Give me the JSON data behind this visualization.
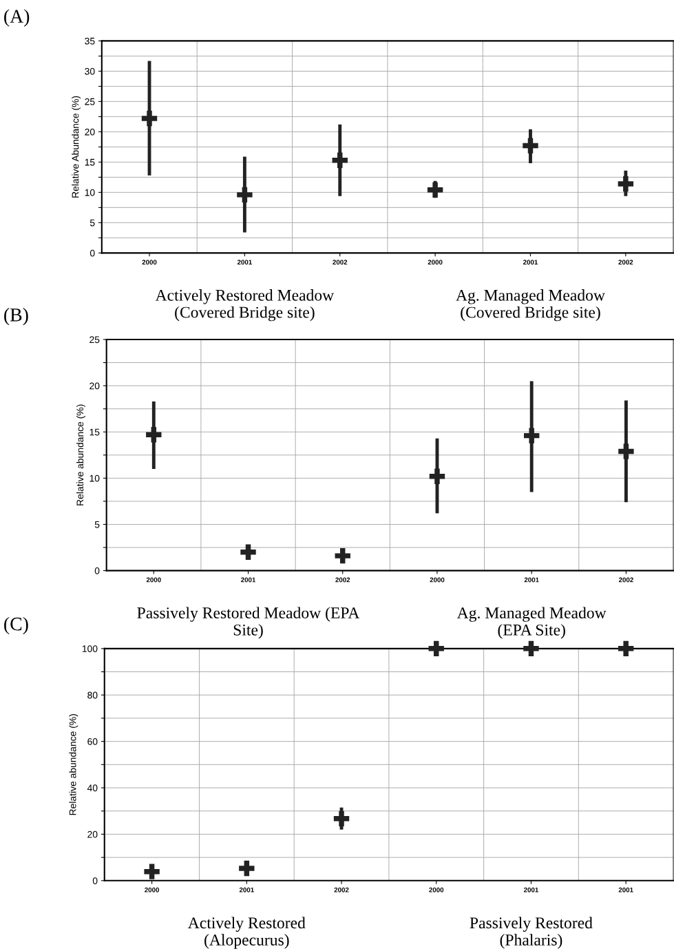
{
  "chart_data": [
    {
      "type": "scatter",
      "ylabel": "Relative Abundance (%)",
      "categories": [
        "2000",
        "2001",
        "2002",
        "2000",
        "2001",
        "2002"
      ],
      "values": [
        22.2,
        9.6,
        15.3,
        10.4,
        17.7,
        11.4
      ],
      "errors": [
        [
          12.8,
          31.7
        ],
        [
          3.4,
          15.9
        ],
        [
          9.4,
          21.2
        ],
        [
          9.1,
          11.9
        ],
        [
          14.8,
          20.4
        ],
        [
          9.4,
          13.6
        ]
      ],
      "color": "#222222",
      "marker": "cross",
      "grid": true,
      "ylim": [
        0,
        35
      ],
      "yticks": [
        0,
        {
          "value": 2.5,
          "label": null
        },
        5,
        {
          "value": 7.5,
          "label": null
        },
        10,
        {
          "value": 12.5,
          "label": null
        },
        15,
        {
          "value": 17.5,
          "label": null
        },
        20,
        {
          "value": 22.5,
          "label": null
        },
        25,
        {
          "value": 27.5,
          "label": null
        },
        30,
        {
          "value": 32.5,
          "label": null
        },
        35
      ],
      "annotations": [
        "(A)",
        "Actively Restored Meadow\n(Covered Bridge site)",
        "Ag. Managed Meadow\n(Covered Bridge site)"
      ]
    },
    {
      "type": "scatter",
      "ylabel": "Relative abundance (%)",
      "categories": [
        "2000",
        "2001",
        "2002",
        "2000",
        "2001",
        "2002"
      ],
      "values": [
        14.7,
        2.0,
        1.6,
        10.2,
        14.6,
        12.9
      ],
      "errors": [
        [
          11.0,
          18.3
        ],
        null,
        null,
        [
          6.2,
          14.3
        ],
        [
          8.5,
          20.5
        ],
        [
          7.4,
          18.4
        ]
      ],
      "color": "#222222",
      "marker": "cross",
      "grid": true,
      "ylim": [
        0,
        25
      ],
      "yticks": [
        0,
        {
          "value": 2.5,
          "label": null
        },
        5,
        {
          "value": 7.5,
          "label": null
        },
        10,
        {
          "value": 12.5,
          "label": null
        },
        15,
        {
          "value": 17.5,
          "label": null
        },
        20,
        {
          "value": 22.5,
          "label": null
        },
        25
      ],
      "annotations": [
        "(B)",
        "Passively Restored Meadow (EPA\nSite)",
        "Ag. Managed Meadow\n(EPA Site)"
      ]
    },
    {
      "type": "scatter",
      "ylabel": "Relative abundance (%)",
      "categories": [
        "2000",
        "2001",
        "2002",
        "2000",
        "2001",
        "2001"
      ],
      "values": [
        3.9,
        5.3,
        26.7,
        100,
        100,
        100
      ],
      "errors": [
        [
          1.5,
          6.2
        ],
        null,
        [
          22,
          31.5
        ],
        null,
        null,
        null
      ],
      "color": "#222222",
      "marker": "cross",
      "grid": true,
      "ylim": [
        0,
        100
      ],
      "yticks": [
        0,
        {
          "value": 10,
          "label": null
        },
        20,
        {
          "value": 30,
          "label": null
        },
        40,
        {
          "value": 50,
          "label": null
        },
        60,
        {
          "value": 70,
          "label": null
        },
        80,
        {
          "value": 90,
          "label": null
        },
        100
      ],
      "annotations": [
        "(C)",
        "Actively Restored\n(Alopecurus)",
        "Passively Restored\n(Phalaris)"
      ]
    }
  ]
}
